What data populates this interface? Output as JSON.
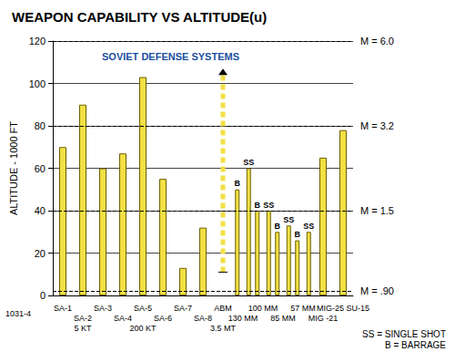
{
  "chart_data": {
    "type": "bar",
    "title": "WEAPON CAPABILITY VS ALTITUDE(u)",
    "y_label": "ALTITUDE - 1000 FT",
    "annotations": [
      "SOVIET DEFENSE SYSTEMS"
    ],
    "footnotes": [
      "SS = SINGLE SHOT",
      "B = BARRAGE"
    ],
    "figure_id": "1031-4",
    "categories": [
      "SA-1",
      "SA-2",
      "SA-3",
      "SA-4",
      "SA-5",
      "SA-6",
      "SA-7",
      "SA-8",
      "ABM",
      "130 MM",
      "100 MM",
      "85 MM",
      "57 MM",
      "MIG -21",
      "MIG-25 SU-15"
    ],
    "sub_labels": [
      null,
      "5 KT",
      null,
      null,
      "200 KT",
      null,
      null,
      null,
      "3.5 MT",
      null,
      null,
      null,
      null,
      null,
      null
    ],
    "color": "#f2e045",
    "series": [
      {
        "color": "#f2e045",
        "values": [
          70,
          90,
          60,
          67,
          103,
          55,
          13,
          32,
          null,
          null,
          null,
          null,
          null,
          65,
          78
        ]
      },
      {
        "type": "range",
        "line_style": "dashed",
        "color": "#f2e045",
        "values": [
          null,
          null,
          null,
          null,
          null,
          null,
          null,
          null,
          [
            11,
            107
          ],
          null,
          null,
          null,
          null,
          null,
          null
        ]
      },
      {
        "name": "B",
        "color": "#f2e045",
        "values": [
          null,
          null,
          null,
          null,
          null,
          null,
          null,
          null,
          null,
          50,
          40,
          30,
          26,
          null,
          null
        ]
      },
      {
        "name": "SS",
        "color": "#f2e045",
        "values": [
          null,
          null,
          null,
          null,
          null,
          null,
          null,
          null,
          null,
          60,
          40,
          33,
          30,
          null,
          null
        ]
      }
    ],
    "mach_lines": [
      {
        "value": 120,
        "label": "M = 6.0"
      },
      {
        "value": 80,
        "label": "M = 3.2"
      },
      {
        "value": 40,
        "label": "M = 1.5"
      },
      {
        "value": 2,
        "label": "M = .90"
      }
    ],
    "ylim": [
      0,
      120
    ],
    "yticks": [
      0,
      20,
      40,
      60,
      80,
      100,
      120
    ],
    "grid": true
  }
}
